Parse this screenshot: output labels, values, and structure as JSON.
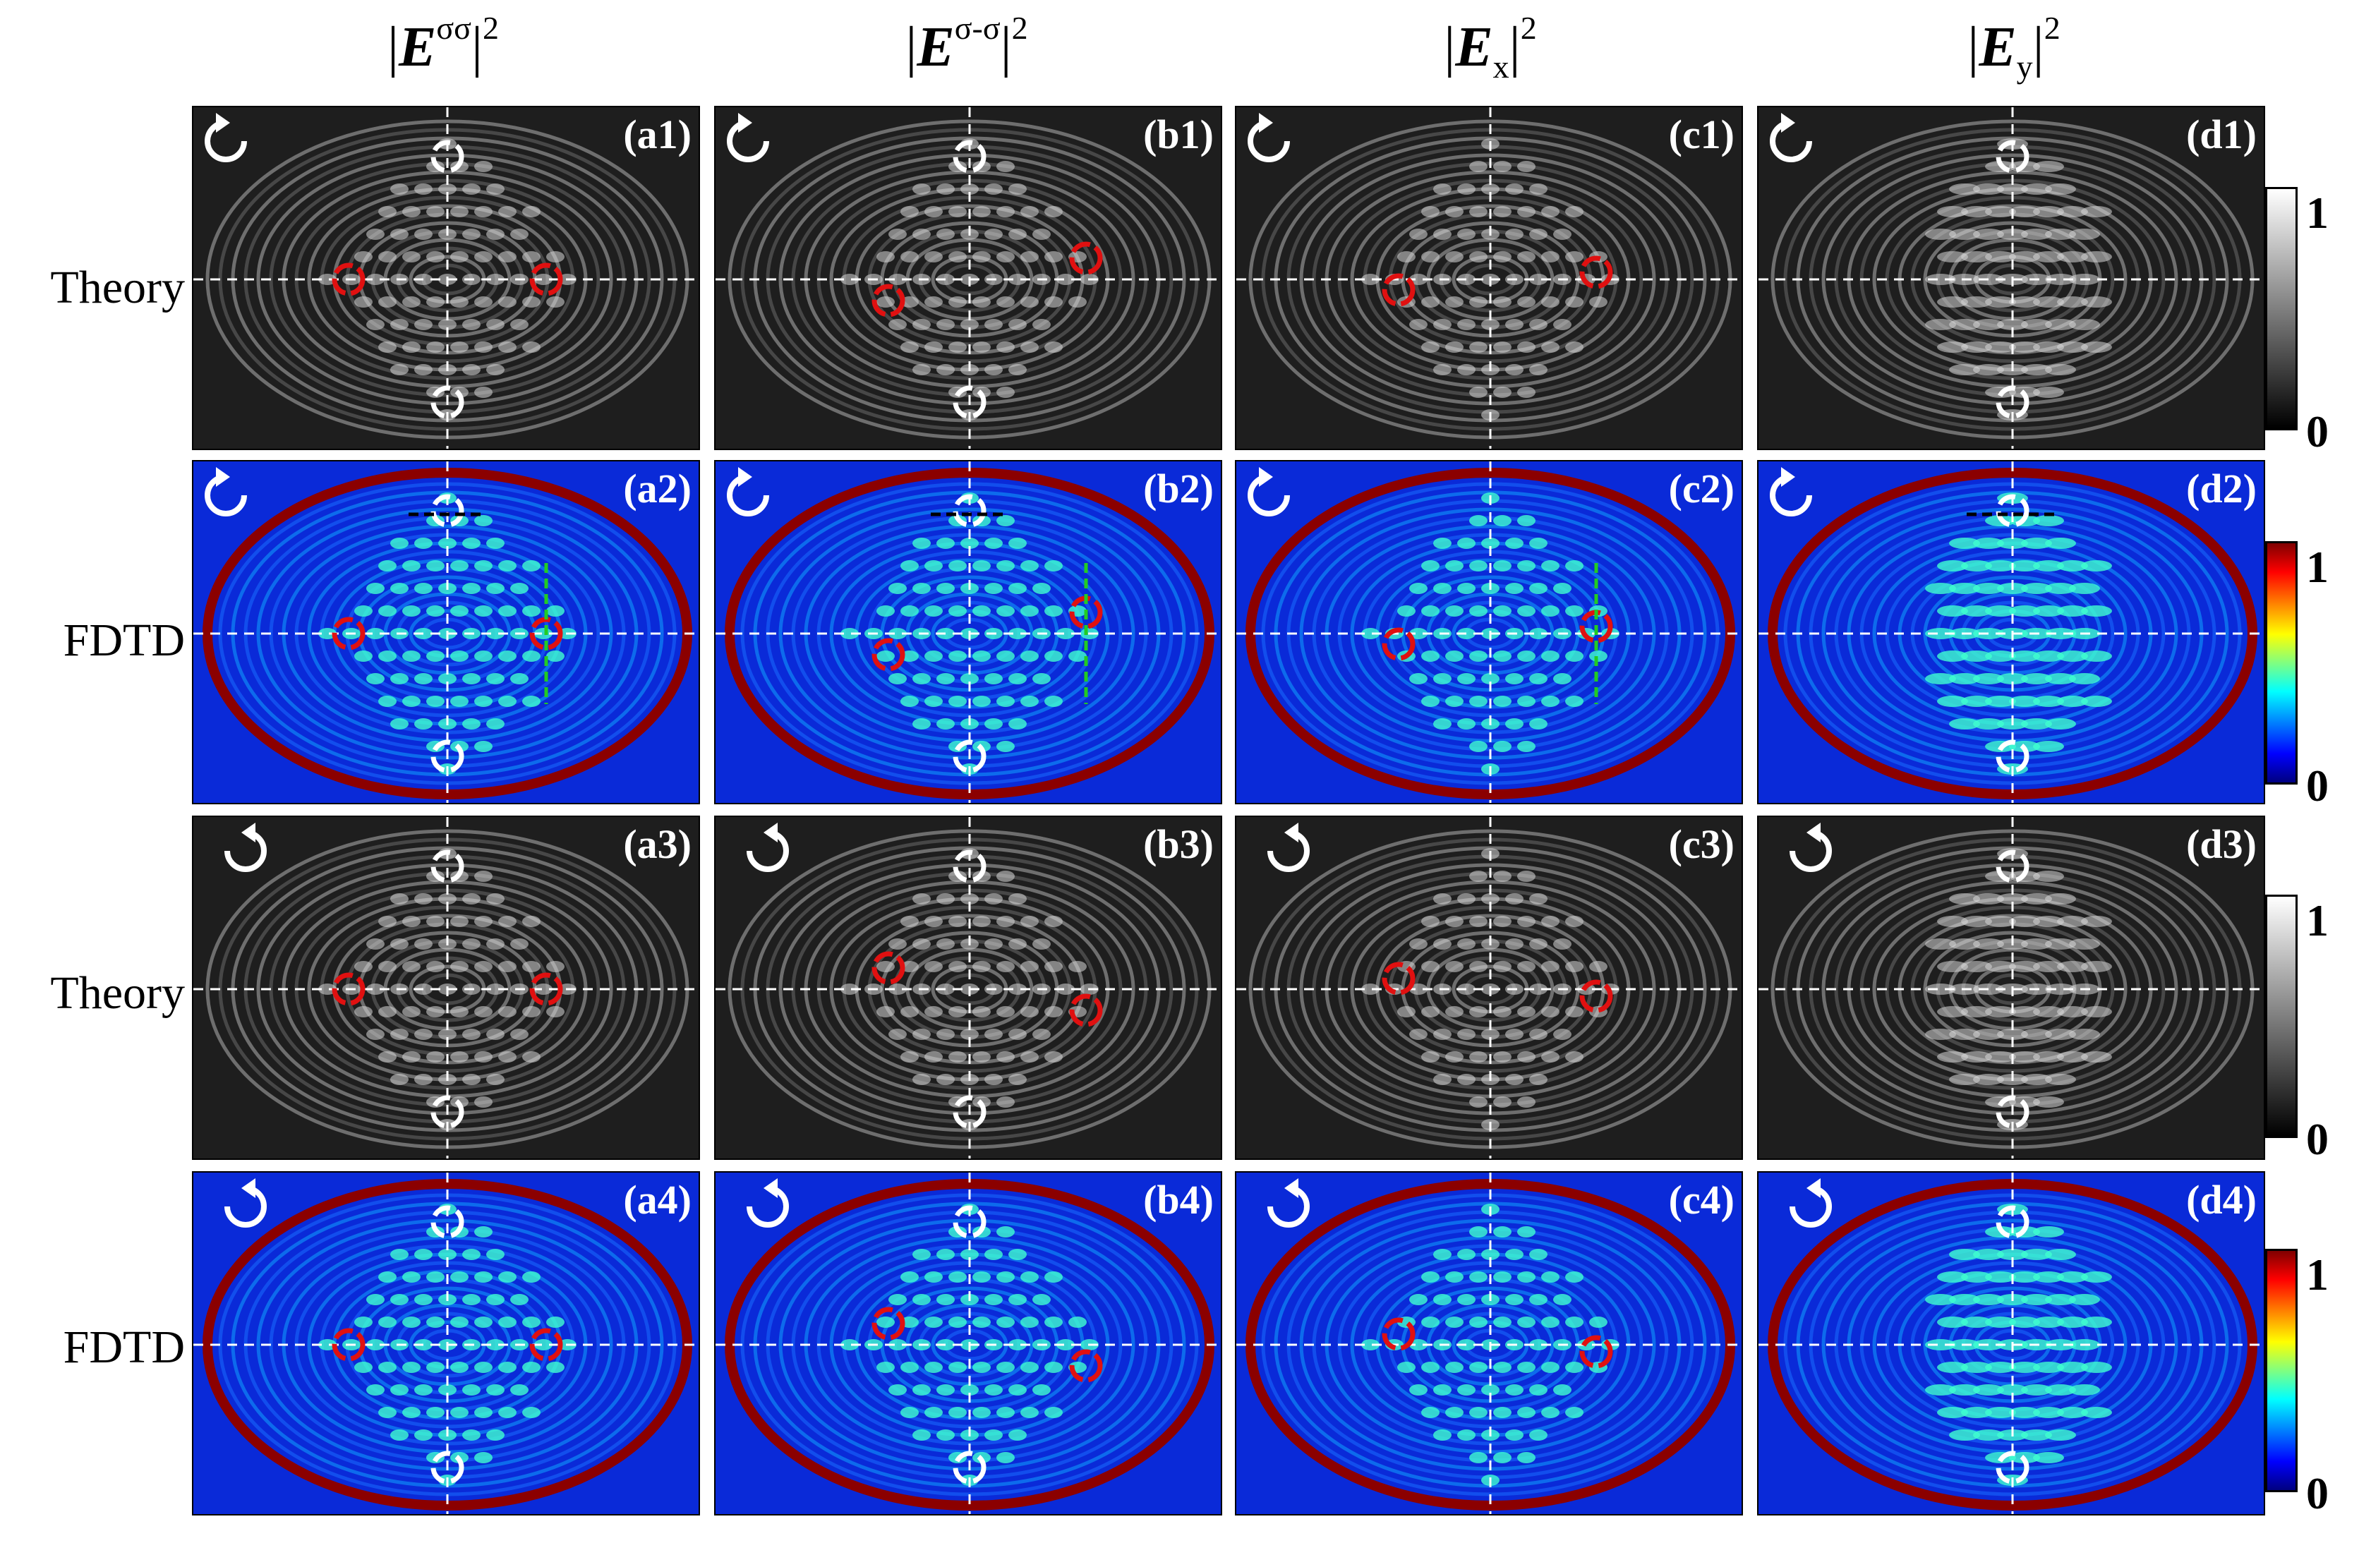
{
  "column_headers": [
    {
      "base": "E",
      "sup": "σσ",
      "tail": "2",
      "sub": ""
    },
    {
      "base": "E",
      "sup": "σ-σ",
      "tail": "2",
      "sub": ""
    },
    {
      "base": "E",
      "sup": "",
      "tail": "2",
      "sub": "x"
    },
    {
      "base": "E",
      "sup": "",
      "tail": "2",
      "sub": "y"
    }
  ],
  "rows": [
    {
      "label": "Theory",
      "kind": "theory",
      "rotation": "counterclockwise-arrow-icon",
      "panels": [
        "(a1)",
        "(b1)",
        "(c1)",
        "(d1)"
      ]
    },
    {
      "label": "FDTD",
      "kind": "fdtd",
      "rotation": "counterclockwise-arrow-icon",
      "panels": [
        "(a2)",
        "(b2)",
        "(c2)",
        "(d2)"
      ]
    },
    {
      "label": "Theory",
      "kind": "theory",
      "rotation": "clockwise-arrow-icon",
      "panels": [
        "(a3)",
        "(b3)",
        "(c3)",
        "(d3)"
      ]
    },
    {
      "label": "FDTD",
      "kind": "fdtd",
      "rotation": "clockwise-arrow-icon",
      "panels": [
        "(a4)",
        "(b4)",
        "(c4)",
        "(d4)"
      ]
    }
  ],
  "colorbars": [
    {
      "kind": "grayscale",
      "max_label": "1",
      "min_label": "0"
    },
    {
      "kind": "jet",
      "max_label": "1",
      "min_label": "0"
    },
    {
      "kind": "grayscale",
      "max_label": "1",
      "min_label": "0"
    },
    {
      "kind": "jet",
      "max_label": "1",
      "min_label": "0"
    }
  ],
  "colors": {
    "theory_background": "#1e1e1e",
    "fdtd_background": "#0a2ad8",
    "fdtd_ring": "#8b0000",
    "spot_marker": "#e01010",
    "crosshair": "#ffffff",
    "line_cut_green": "#22cc22",
    "line_cut_black": "#000000"
  }
}
